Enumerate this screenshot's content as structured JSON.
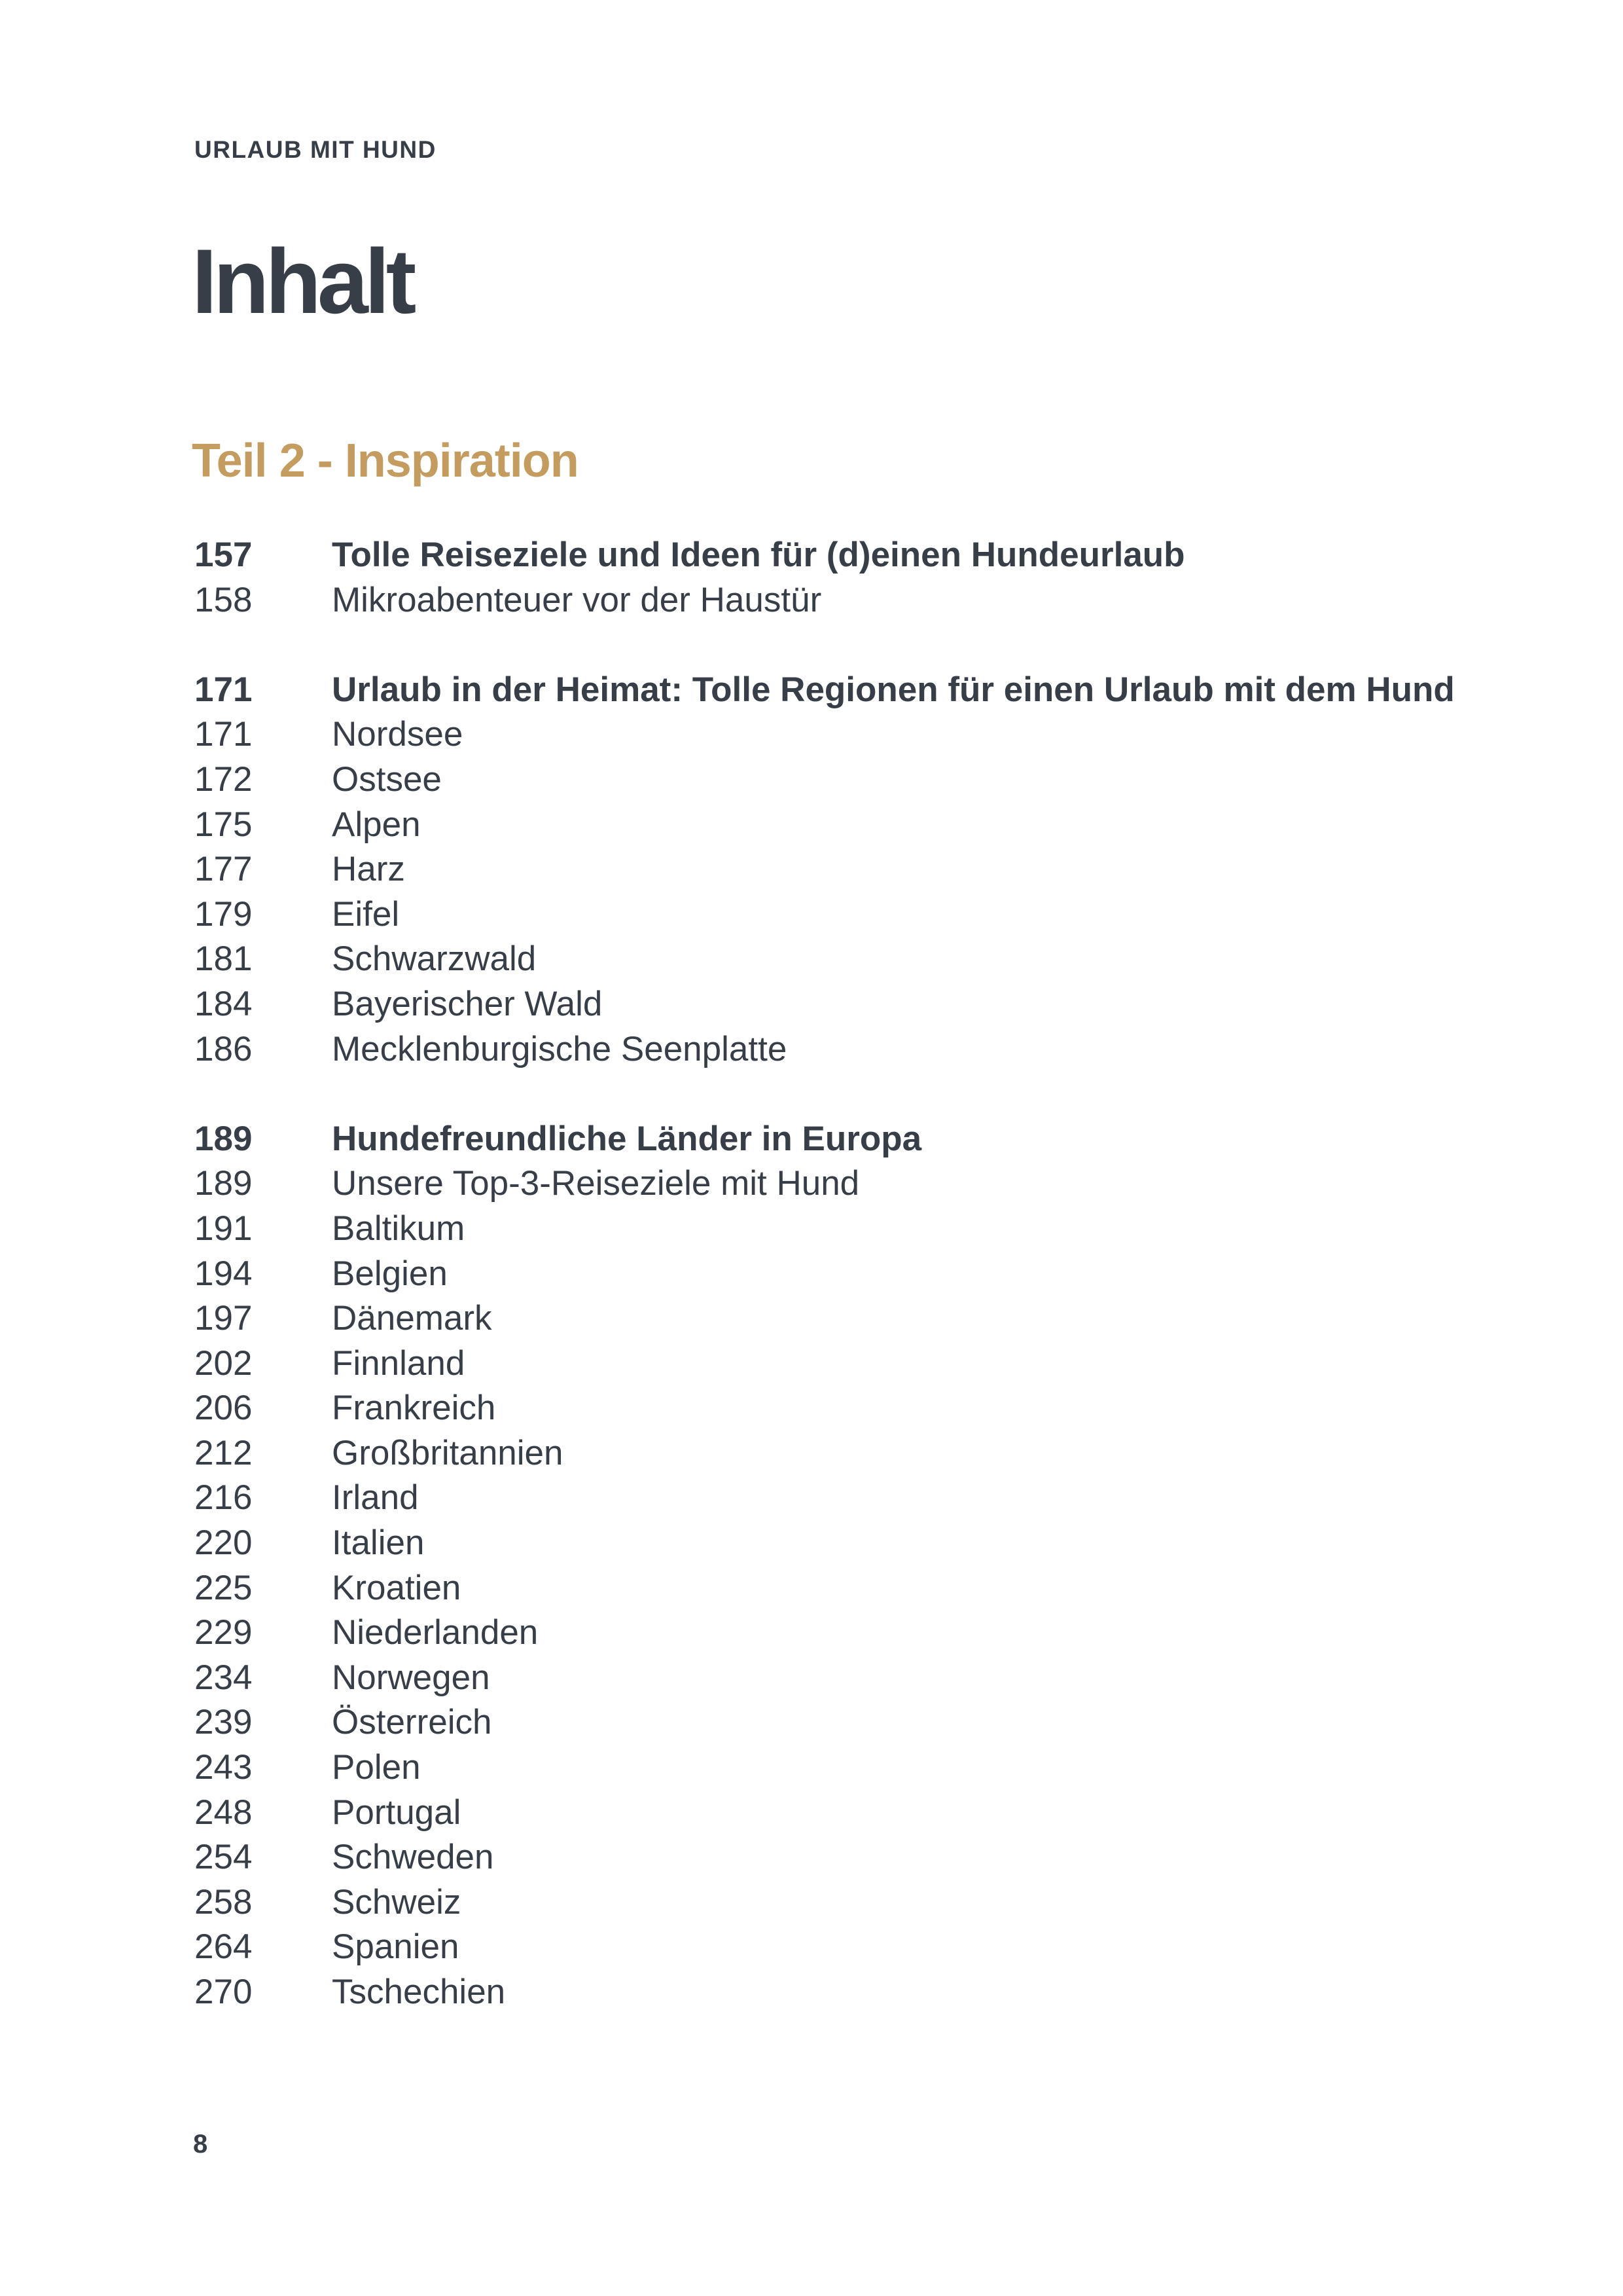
{
  "page": {
    "eyebrow": "URLAUB MIT HUND",
    "title": "Inhalt",
    "section_heading": "Teil 2 - Inspiration",
    "footer_page_number": "8",
    "colors": {
      "background": "#FFFFFF",
      "text": "#373E47",
      "accent_gold": "#C49C5F"
    }
  },
  "toc": {
    "sections": [
      {
        "entries": [
          {
            "page": "157",
            "label": "Tolle Reiseziele und Ideen für (d)einen Hundeurlaub",
            "bold": true
          },
          {
            "page": "158",
            "label": "Mikroabenteuer vor der Haustür",
            "bold": false
          }
        ]
      },
      {
        "entries": [
          {
            "page": "171",
            "label": "Urlaub in der Heimat: Tolle Regionen für einen Urlaub mit dem Hund",
            "bold": true
          },
          {
            "page": "171",
            "label": "Nordsee",
            "bold": false
          },
          {
            "page": "172",
            "label": "Ostsee",
            "bold": false
          },
          {
            "page": "175",
            "label": "Alpen",
            "bold": false
          },
          {
            "page": "177",
            "label": "Harz",
            "bold": false
          },
          {
            "page": "179",
            "label": "Eifel",
            "bold": false
          },
          {
            "page": "181",
            "label": "Schwarzwald",
            "bold": false
          },
          {
            "page": "184",
            "label": "Bayerischer Wald",
            "bold": false
          },
          {
            "page": "186",
            "label": "Mecklenburgische Seenplatte",
            "bold": false
          }
        ]
      },
      {
        "entries": [
          {
            "page": "189",
            "label": "Hundefreundliche Länder in Europa",
            "bold": true
          },
          {
            "page": "189",
            "label": "Unsere Top-3-Reiseziele mit Hund",
            "bold": false
          },
          {
            "page": "191",
            "label": "Baltikum",
            "bold": false
          },
          {
            "page": "194",
            "label": "Belgien",
            "bold": false
          },
          {
            "page": "197",
            "label": "Dänemark",
            "bold": false
          },
          {
            "page": "202",
            "label": "Finnland",
            "bold": false
          },
          {
            "page": "206",
            "label": "Frankreich",
            "bold": false
          },
          {
            "page": "212",
            "label": "Großbritannien",
            "bold": false
          },
          {
            "page": "216",
            "label": "Irland",
            "bold": false
          },
          {
            "page": "220",
            "label": "Italien",
            "bold": false
          },
          {
            "page": "225",
            "label": "Kroatien",
            "bold": false
          },
          {
            "page": "229",
            "label": "Niederlanden",
            "bold": false
          },
          {
            "page": "234",
            "label": "Norwegen",
            "bold": false
          },
          {
            "page": "239",
            "label": "Österreich",
            "bold": false
          },
          {
            "page": "243",
            "label": "Polen",
            "bold": false
          },
          {
            "page": "248",
            "label": "Portugal",
            "bold": false
          },
          {
            "page": "254",
            "label": "Schweden",
            "bold": false
          },
          {
            "page": "258",
            "label": "Schweiz",
            "bold": false
          },
          {
            "page": "264",
            "label": "Spanien",
            "bold": false
          },
          {
            "page": "270",
            "label": "Tschechien",
            "bold": false
          }
        ]
      }
    ]
  }
}
